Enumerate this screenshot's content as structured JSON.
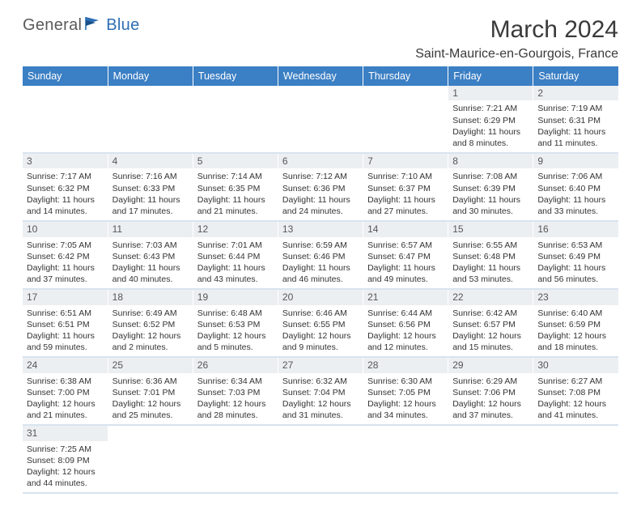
{
  "logo": {
    "text1": "General",
    "text2": "Blue"
  },
  "title": "March 2024",
  "location": "Saint-Maurice-en-Gourgois, France",
  "colors": {
    "header_bg": "#3b7fc4",
    "header_fg": "#ffffff",
    "daynum_bg": "#eceff1",
    "row_divider": "#d8e3ef",
    "logo_gray": "#5a5a5a",
    "logo_blue": "#2d6fb5"
  },
  "weekdays": [
    "Sunday",
    "Monday",
    "Tuesday",
    "Wednesday",
    "Thursday",
    "Friday",
    "Saturday"
  ],
  "weeks": [
    [
      null,
      null,
      null,
      null,
      null,
      {
        "n": "1",
        "sr": "7:21 AM",
        "ss": "6:29 PM",
        "dl": "11 hours and 8 minutes."
      },
      {
        "n": "2",
        "sr": "7:19 AM",
        "ss": "6:31 PM",
        "dl": "11 hours and 11 minutes."
      }
    ],
    [
      {
        "n": "3",
        "sr": "7:17 AM",
        "ss": "6:32 PM",
        "dl": "11 hours and 14 minutes."
      },
      {
        "n": "4",
        "sr": "7:16 AM",
        "ss": "6:33 PM",
        "dl": "11 hours and 17 minutes."
      },
      {
        "n": "5",
        "sr": "7:14 AM",
        "ss": "6:35 PM",
        "dl": "11 hours and 21 minutes."
      },
      {
        "n": "6",
        "sr": "7:12 AM",
        "ss": "6:36 PM",
        "dl": "11 hours and 24 minutes."
      },
      {
        "n": "7",
        "sr": "7:10 AM",
        "ss": "6:37 PM",
        "dl": "11 hours and 27 minutes."
      },
      {
        "n": "8",
        "sr": "7:08 AM",
        "ss": "6:39 PM",
        "dl": "11 hours and 30 minutes."
      },
      {
        "n": "9",
        "sr": "7:06 AM",
        "ss": "6:40 PM",
        "dl": "11 hours and 33 minutes."
      }
    ],
    [
      {
        "n": "10",
        "sr": "7:05 AM",
        "ss": "6:42 PM",
        "dl": "11 hours and 37 minutes."
      },
      {
        "n": "11",
        "sr": "7:03 AM",
        "ss": "6:43 PM",
        "dl": "11 hours and 40 minutes."
      },
      {
        "n": "12",
        "sr": "7:01 AM",
        "ss": "6:44 PM",
        "dl": "11 hours and 43 minutes."
      },
      {
        "n": "13",
        "sr": "6:59 AM",
        "ss": "6:46 PM",
        "dl": "11 hours and 46 minutes."
      },
      {
        "n": "14",
        "sr": "6:57 AM",
        "ss": "6:47 PM",
        "dl": "11 hours and 49 minutes."
      },
      {
        "n": "15",
        "sr": "6:55 AM",
        "ss": "6:48 PM",
        "dl": "11 hours and 53 minutes."
      },
      {
        "n": "16",
        "sr": "6:53 AM",
        "ss": "6:49 PM",
        "dl": "11 hours and 56 minutes."
      }
    ],
    [
      {
        "n": "17",
        "sr": "6:51 AM",
        "ss": "6:51 PM",
        "dl": "11 hours and 59 minutes."
      },
      {
        "n": "18",
        "sr": "6:49 AM",
        "ss": "6:52 PM",
        "dl": "12 hours and 2 minutes."
      },
      {
        "n": "19",
        "sr": "6:48 AM",
        "ss": "6:53 PM",
        "dl": "12 hours and 5 minutes."
      },
      {
        "n": "20",
        "sr": "6:46 AM",
        "ss": "6:55 PM",
        "dl": "12 hours and 9 minutes."
      },
      {
        "n": "21",
        "sr": "6:44 AM",
        "ss": "6:56 PM",
        "dl": "12 hours and 12 minutes."
      },
      {
        "n": "22",
        "sr": "6:42 AM",
        "ss": "6:57 PM",
        "dl": "12 hours and 15 minutes."
      },
      {
        "n": "23",
        "sr": "6:40 AM",
        "ss": "6:59 PM",
        "dl": "12 hours and 18 minutes."
      }
    ],
    [
      {
        "n": "24",
        "sr": "6:38 AM",
        "ss": "7:00 PM",
        "dl": "12 hours and 21 minutes."
      },
      {
        "n": "25",
        "sr": "6:36 AM",
        "ss": "7:01 PM",
        "dl": "12 hours and 25 minutes."
      },
      {
        "n": "26",
        "sr": "6:34 AM",
        "ss": "7:03 PM",
        "dl": "12 hours and 28 minutes."
      },
      {
        "n": "27",
        "sr": "6:32 AM",
        "ss": "7:04 PM",
        "dl": "12 hours and 31 minutes."
      },
      {
        "n": "28",
        "sr": "6:30 AM",
        "ss": "7:05 PM",
        "dl": "12 hours and 34 minutes."
      },
      {
        "n": "29",
        "sr": "6:29 AM",
        "ss": "7:06 PM",
        "dl": "12 hours and 37 minutes."
      },
      {
        "n": "30",
        "sr": "6:27 AM",
        "ss": "7:08 PM",
        "dl": "12 hours and 41 minutes."
      }
    ],
    [
      {
        "n": "31",
        "sr": "7:25 AM",
        "ss": "8:09 PM",
        "dl": "12 hours and 44 minutes."
      },
      null,
      null,
      null,
      null,
      null,
      null
    ]
  ],
  "labels": {
    "sunrise": "Sunrise:",
    "sunset": "Sunset:",
    "daylight": "Daylight:"
  }
}
